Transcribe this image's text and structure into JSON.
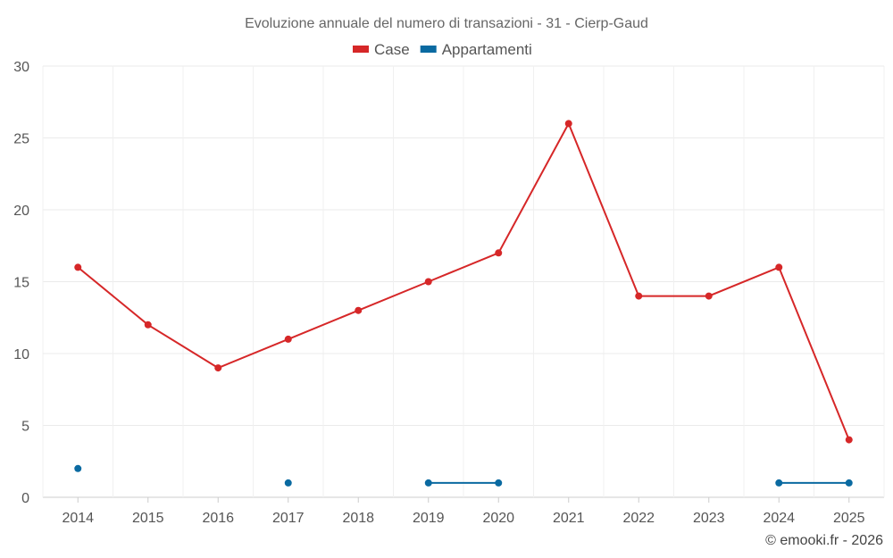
{
  "chart_data": {
    "type": "line",
    "title": "Evoluzione annuale del numero di transazioni - 31 - Cierp-Gaud",
    "categories": [
      "2014",
      "2015",
      "2016",
      "2017",
      "2018",
      "2019",
      "2020",
      "2021",
      "2022",
      "2023",
      "2024",
      "2025"
    ],
    "series": [
      {
        "name": "Case",
        "color": "#d62728",
        "values": [
          16,
          12,
          9,
          11,
          13,
          15,
          17,
          26,
          14,
          14,
          16,
          4
        ]
      },
      {
        "name": "Appartamenti",
        "color": "#0a6aa1",
        "values": [
          2,
          null,
          null,
          1,
          null,
          1,
          1,
          null,
          null,
          null,
          1,
          1
        ]
      }
    ],
    "ylim": [
      0,
      30
    ],
    "yticks": [
      "0",
      "5",
      "10",
      "15",
      "20",
      "25",
      "30"
    ],
    "grid": true,
    "legend_position": "top-center",
    "xlabel": "",
    "ylabel": ""
  },
  "credit": "© emooki.fr - 2026"
}
